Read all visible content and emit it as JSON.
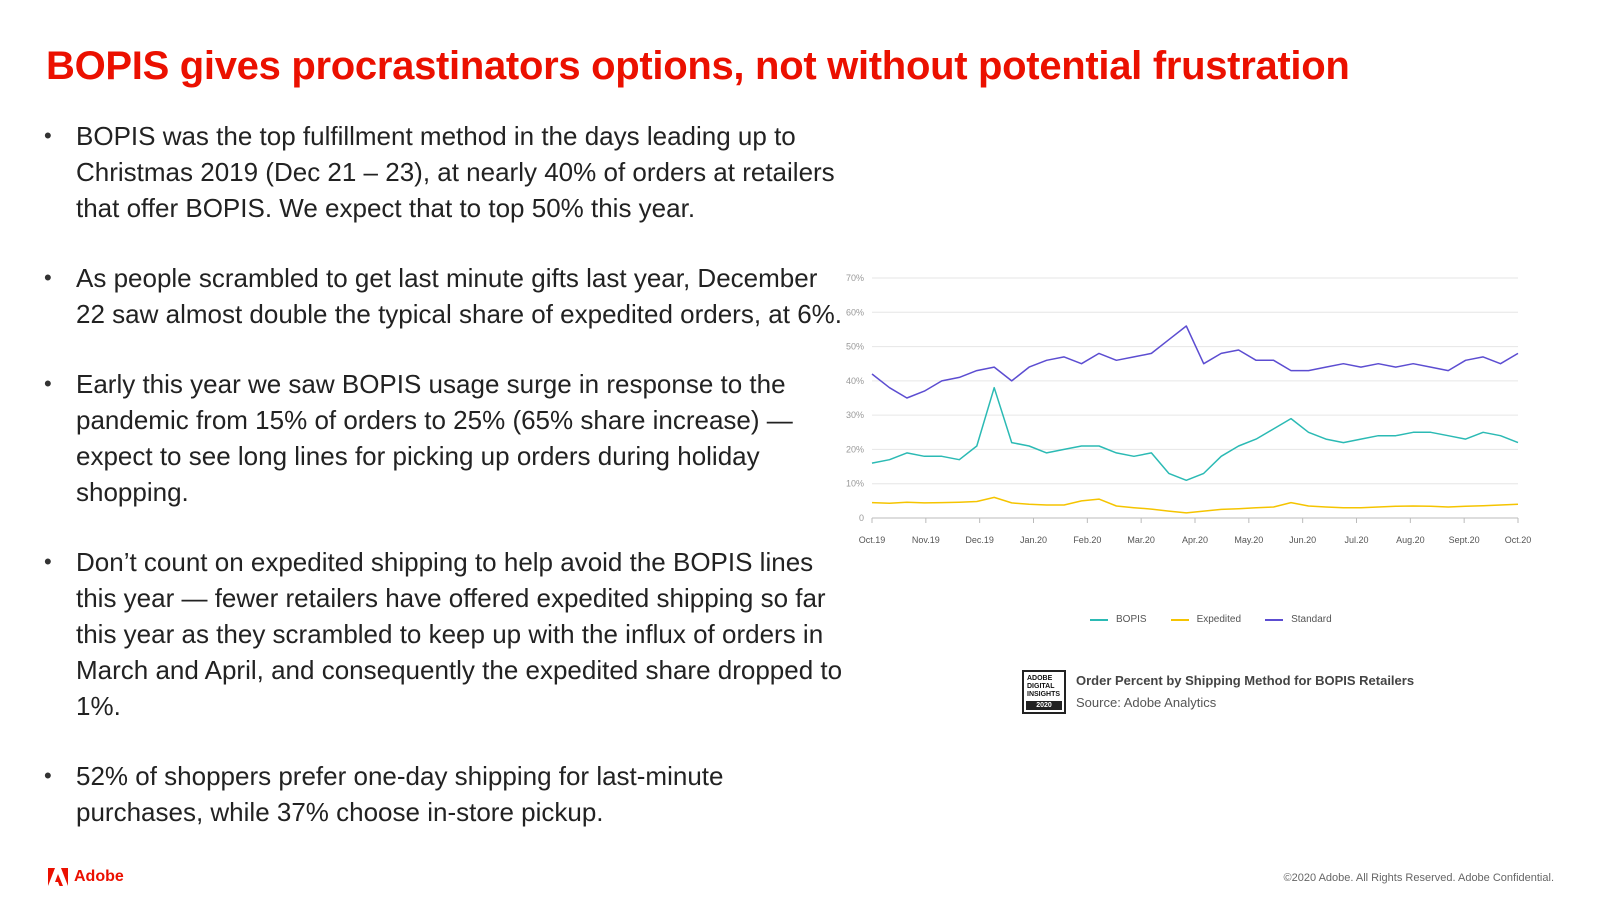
{
  "title": "BOPIS gives procrastinators options, not without potential frustration",
  "bullets": [
    "BOPIS was the top fulfillment method in the days leading up to Christmas 2019 (Dec 21 – 23), at nearly 40% of orders at retailers that offer BOPIS. We expect that to top 50% this year.",
    "As people scrambled to get last minute gifts last year, December 22 saw almost double the typical share of expedited orders, at 6%.",
    "Early this year we saw BOPIS usage surge in response to the pandemic from 15% of orders to 25% (65% share increase) — expect to see long lines for picking up orders during holiday shopping.",
    "Don’t count on expedited shipping to help avoid the BOPIS lines this year — fewer retailers have offered expedited shipping so far this year as they scrambled to keep up with the influx of orders in March and April, and consequently the expedited share dropped to 1%.",
    "52% of shoppers prefer one-day shipping for last-minute purchases, while 37% choose in-store pickup."
  ],
  "bullet_symbol": "•",
  "chart_data": {
    "type": "line",
    "y_ticks": [
      "0",
      "10%",
      "20%",
      "30%",
      "40%",
      "50%",
      "60%",
      "70%"
    ],
    "ylim": [
      0,
      70
    ],
    "x_ticks": [
      "Oct.19",
      "Nov.19",
      "Dec.19",
      "Jan.20",
      "Feb.20",
      "Mar.20",
      "Apr.20",
      "May.20",
      "Jun.20",
      "Jul.20",
      "Aug.20",
      "Sept.20",
      "Oct.20"
    ],
    "grid": true,
    "legend_position": "bottom",
    "series": [
      {
        "name": "BOPIS",
        "color": "#2bbab4",
        "values": [
          16,
          17,
          19,
          18,
          18,
          17,
          21,
          38,
          22,
          21,
          19,
          20,
          21,
          21,
          19,
          18,
          19,
          13,
          11,
          13,
          18,
          21,
          23,
          26,
          29,
          25,
          23,
          22,
          23,
          24,
          24,
          25,
          25,
          24,
          23,
          25,
          24,
          22
        ]
      },
      {
        "name": "Expedited",
        "color": "#f5c400",
        "values": [
          4.5,
          4.3,
          4.6,
          4.4,
          4.5,
          4.6,
          4.8,
          6,
          4.4,
          4,
          3.8,
          3.8,
          5,
          5.5,
          3.5,
          3,
          2.6,
          2,
          1.5,
          2,
          2.5,
          2.7,
          3,
          3.2,
          4.5,
          3.5,
          3.2,
          3,
          3,
          3.2,
          3.4,
          3.5,
          3.4,
          3.2,
          3.4,
          3.6,
          3.8,
          4
        ]
      },
      {
        "name": "Standard",
        "color": "#5c4dd1",
        "values": [
          42,
          38,
          35,
          37,
          40,
          41,
          43,
          44,
          40,
          44,
          46,
          47,
          45,
          48,
          46,
          47,
          48,
          52,
          56,
          45,
          48,
          49,
          46,
          46,
          43,
          43,
          44,
          45,
          44,
          45,
          44,
          45,
          44,
          43,
          46,
          47,
          45,
          48
        ]
      }
    ],
    "caption_title": "Order Percent by Shipping Method for BOPIS Retailers",
    "caption_source": "Source: Adobe Analytics"
  },
  "badge": {
    "line1": "ADOBE",
    "line2": "DIGITAL",
    "line3": "INSIGHTS",
    "year": "2020"
  },
  "footer": {
    "logo_text": "Adobe",
    "copyright": "©2020 Adobe. All Rights Reserved. Adobe Confidential."
  },
  "colors": {
    "accent": "#eb1000"
  }
}
